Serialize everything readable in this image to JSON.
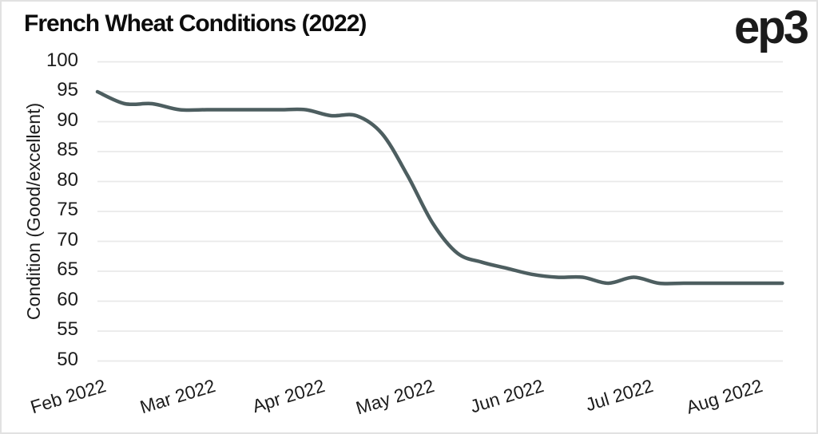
{
  "header": {
    "logo_text": "ep3"
  },
  "chart_data": {
    "type": "line",
    "title": "French Wheat Conditions (2022)",
    "xlabel": "",
    "ylabel": "Condition (Good/excellent)",
    "ylim": [
      50,
      100
    ],
    "ytick_step": 5,
    "yticks": [
      100,
      95,
      90,
      85,
      80,
      75,
      70,
      65,
      60,
      55,
      50
    ],
    "xtick_labels": [
      "Feb 2022",
      "Mar 2022",
      "Apr 2022",
      "May 2022",
      "Jun 2022",
      "Jul 2022",
      "Aug 2022"
    ],
    "grid": "horizontal",
    "legend": "none",
    "smoothing": "spline",
    "line_color": "#4d5e60",
    "grid_color": "#e9e9e9",
    "series": [
      {
        "name": "Condition (Good/excellent)",
        "points": [
          {
            "date": "2022-02-01",
            "value": 95
          },
          {
            "date": "2022-02-08",
            "value": 93
          },
          {
            "date": "2022-02-15",
            "value": 93
          },
          {
            "date": "2022-02-22",
            "value": 92
          },
          {
            "date": "2022-03-01",
            "value": 92
          },
          {
            "date": "2022-03-08",
            "value": 92
          },
          {
            "date": "2022-03-15",
            "value": 92
          },
          {
            "date": "2022-03-22",
            "value": 92
          },
          {
            "date": "2022-03-29",
            "value": 92
          },
          {
            "date": "2022-04-05",
            "value": 91
          },
          {
            "date": "2022-04-12",
            "value": 91
          },
          {
            "date": "2022-04-19",
            "value": 88
          },
          {
            "date": "2022-04-26",
            "value": 81
          },
          {
            "date": "2022-05-03",
            "value": 73
          },
          {
            "date": "2022-05-10",
            "value": 68
          },
          {
            "date": "2022-05-17",
            "value": 66.5
          },
          {
            "date": "2022-05-24",
            "value": 65.5
          },
          {
            "date": "2022-05-31",
            "value": 64.5
          },
          {
            "date": "2022-06-07",
            "value": 64
          },
          {
            "date": "2022-06-14",
            "value": 64
          },
          {
            "date": "2022-06-21",
            "value": 63
          },
          {
            "date": "2022-06-28",
            "value": 64
          },
          {
            "date": "2022-07-05",
            "value": 63
          },
          {
            "date": "2022-07-12",
            "value": 63
          },
          {
            "date": "2022-07-19",
            "value": 63
          },
          {
            "date": "2022-07-26",
            "value": 63
          },
          {
            "date": "2022-08-02",
            "value": 63
          },
          {
            "date": "2022-08-09",
            "value": 63
          }
        ]
      }
    ]
  }
}
